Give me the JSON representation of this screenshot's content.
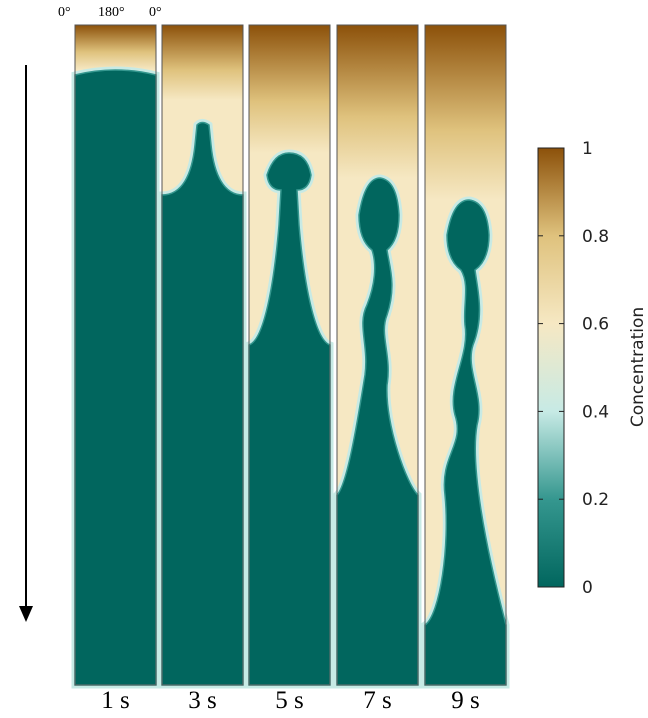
{
  "angle_labels": [
    "0°",
    "180°",
    "0°"
  ],
  "panels": [
    {
      "label": "1 s"
    },
    {
      "label": "3 s"
    },
    {
      "label": "5 s"
    },
    {
      "label": "7 s"
    },
    {
      "label": "9 s"
    }
  ],
  "colorbar": {
    "label": "Concentration",
    "lim": [
      0,
      1
    ],
    "ticks": [
      0,
      0.2,
      0.4,
      0.6,
      0.8,
      1
    ],
    "colors": [
      "#01665e",
      "#35978f",
      "#c7eae5",
      "#f6e8c3",
      "#dfc27d",
      "#8c510a"
    ]
  }
}
